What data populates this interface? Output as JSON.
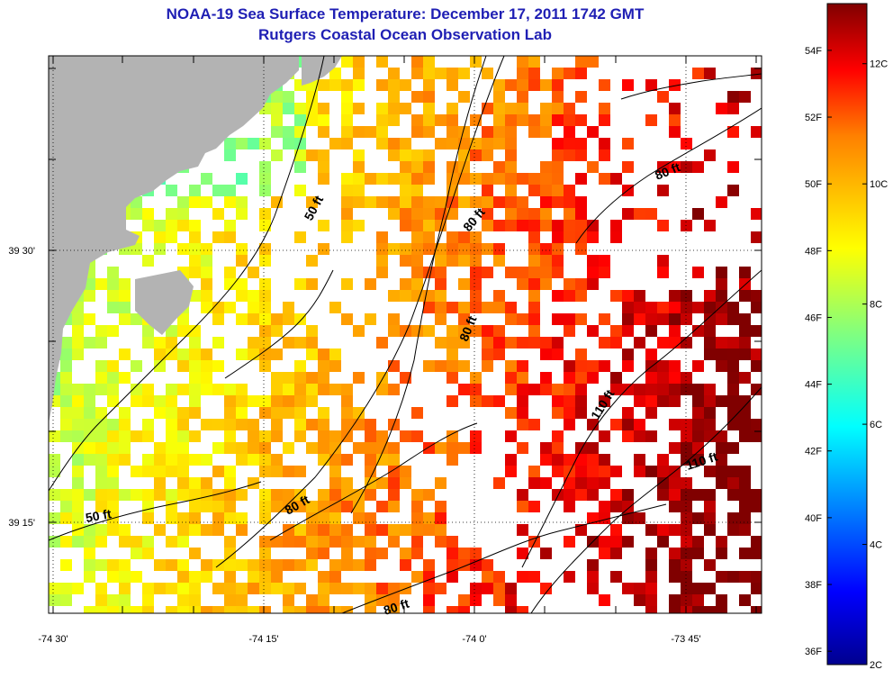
{
  "title": {
    "line1": "NOAA-19 Sea Surface Temperature:  December 17, 2011 1742 GMT",
    "line2": "Rutgers Coastal Ocean Observation Lab"
  },
  "axes": {
    "x_ticks": [
      "-74 30'",
      "-74 15'",
      "-74 0'",
      "-73 45'"
    ],
    "y_ticks": [
      "39 30'",
      "39 15'"
    ]
  },
  "contour_labels": [
    "50 ft",
    "80 ft",
    "80 ft",
    "80 ft",
    "110 ft",
    "110 ft",
    "50 ft",
    "80 ft",
    "80 ft"
  ],
  "colorbar": {
    "fahrenheit_labels": [
      "54F",
      "52F",
      "50F",
      "48F",
      "46F",
      "44F",
      "42F",
      "40F",
      "38F",
      "36F"
    ],
    "celsius_labels": [
      "12C",
      "10C",
      "8C",
      "6C",
      "4C",
      "2C"
    ],
    "range_c": [
      2,
      13
    ],
    "colors": [
      "#00008f",
      "#0000ff",
      "#0080ff",
      "#00ffff",
      "#80ff80",
      "#ffff00",
      "#ff8000",
      "#ff0000",
      "#800000"
    ]
  },
  "colors": {
    "land": "#b3b3b3",
    "title": "#1f1fb4"
  }
}
